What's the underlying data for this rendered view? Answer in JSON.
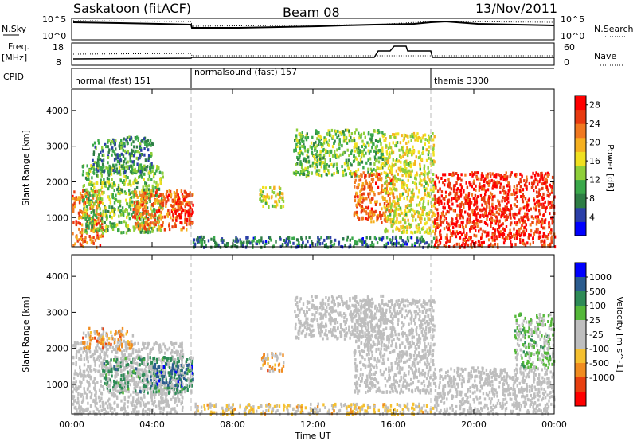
{
  "header": {
    "station": "Saskatoon (fitACF)",
    "beam": "Beam 08",
    "date": "13/Nov/2011"
  },
  "noise_panel": {
    "left_label": "N.Sky",
    "left_ticks": [
      "10^5",
      "10^0"
    ],
    "right_ticks": [
      "10^5",
      "10^0"
    ],
    "right_label": "N.Search"
  },
  "freq_panel": {
    "left_label_1": "Freq.",
    "left_label_2": "[MHz]",
    "left_ticks": [
      "18",
      "8"
    ],
    "right_ticks": [
      "60",
      "0"
    ],
    "right_label": "Nave"
  },
  "cpid": {
    "label": "CPID",
    "modes": [
      {
        "name": "normal (fast) 151",
        "start_hour": 0
      },
      {
        "name": "normalsound (fast) 157",
        "start_hour": 6
      },
      {
        "name": "themis 3300",
        "start_hour": 18
      }
    ]
  },
  "colors": {
    "power_scale": [
      "#0000ff",
      "#2b3fa8",
      "#2e7d45",
      "#3aa84a",
      "#8fcf3a",
      "#f0e020",
      "#f5b020",
      "#f07820",
      "#e83a10",
      "#ff0000"
    ],
    "velocity_scale": [
      "#0000ff",
      "#2b5c8f",
      "#2e8b57",
      "#55b83a",
      "#bebebe",
      "#bebebe",
      "#f5c030",
      "#f08c20",
      "#e84010",
      "#ff0000"
    ],
    "ground_scatter": "#bebebe"
  },
  "chart_data": [
    {
      "type": "heatmap",
      "name": "power",
      "xlabel": "",
      "ylabel": "Slant Range [km]",
      "xlim": [
        0,
        24
      ],
      "ylim": [
        180,
        4600
      ],
      "yticks": [
        1000,
        2000,
        3000,
        4000
      ],
      "colorbar_label": "Power [dB]",
      "colorbar_ticks": [
        4,
        8,
        12,
        16,
        20,
        24,
        28
      ],
      "colorbar_range": [
        0,
        30
      ],
      "mode_boundaries_hours": [
        6,
        18
      ],
      "scatter_regions": [
        {
          "t0": 0.0,
          "t1": 1.5,
          "r0": 200,
          "r1": 1800,
          "power": 24
        },
        {
          "t0": 0.5,
          "t1": 4.5,
          "r0": 600,
          "r1": 2500,
          "power": 12
        },
        {
          "t0": 1.0,
          "t1": 4.0,
          "r0": 2300,
          "r1": 3300,
          "power": 8
        },
        {
          "t0": 3.0,
          "t1": 6.0,
          "r0": 700,
          "r1": 1800,
          "power": 24
        },
        {
          "t0": 5.0,
          "t1": 6.0,
          "r0": 800,
          "r1": 1700,
          "power": 28
        },
        {
          "t0": 6.0,
          "t1": 18.0,
          "r0": 200,
          "r1": 500,
          "power": 6
        },
        {
          "t0": 9.3,
          "t1": 10.5,
          "r0": 1300,
          "r1": 1900,
          "power": 16
        },
        {
          "t0": 11.0,
          "t1": 15.5,
          "r0": 2200,
          "r1": 3500,
          "power": 12
        },
        {
          "t0": 14.0,
          "t1": 16.0,
          "r0": 900,
          "r1": 2300,
          "power": 24
        },
        {
          "t0": 15.5,
          "t1": 18.0,
          "r0": 600,
          "r1": 3400,
          "power": 16
        },
        {
          "t0": 18.0,
          "t1": 24.0,
          "r0": 200,
          "r1": 2300,
          "power": 28
        }
      ]
    },
    {
      "type": "heatmap",
      "name": "velocity",
      "xlabel": "Time UT",
      "ylabel": "Slant Range [km]",
      "xlim": [
        0,
        24
      ],
      "ylim": [
        180,
        4600
      ],
      "yticks": [
        1000,
        2000,
        3000,
        4000
      ],
      "xticks": [
        "00:00",
        "04:00",
        "08:00",
        "12:00",
        "16:00",
        "20:00",
        "00:00"
      ],
      "xtick_hours": [
        0,
        4,
        8,
        12,
        16,
        20,
        24
      ],
      "colorbar_label": "Velocity [m s^-1]",
      "colorbar_ticks": [
        "1000",
        "500",
        "100",
        "25",
        "-25",
        "-100",
        "-500",
        "-1000"
      ],
      "mode_boundaries_hours": [
        6,
        18
      ],
      "scatter_regions": [
        {
          "t0": 0.0,
          "t1": 5.5,
          "r0": 200,
          "r1": 2200,
          "velocity": 0
        },
        {
          "t0": 1.5,
          "t1": 6.0,
          "r0": 800,
          "r1": 1800,
          "velocity": 200
        },
        {
          "t0": 0.5,
          "t1": 3.0,
          "r0": 2000,
          "r1": 2600,
          "velocity": -150
        },
        {
          "t0": 4.0,
          "t1": 6.0,
          "r0": 1000,
          "r1": 1600,
          "velocity": 400
        },
        {
          "t0": 6.0,
          "t1": 18.0,
          "r0": 200,
          "r1": 500,
          "velocity": -80
        },
        {
          "t0": 9.3,
          "t1": 10.5,
          "r0": 1400,
          "r1": 1900,
          "velocity": -300
        },
        {
          "t0": 11.0,
          "t1": 15.5,
          "r0": 2300,
          "r1": 3500,
          "velocity": 0
        },
        {
          "t0": 14.0,
          "t1": 18.0,
          "r0": 800,
          "r1": 3400,
          "velocity": 0
        },
        {
          "t0": 18.0,
          "t1": 24.0,
          "r0": 200,
          "r1": 1500,
          "velocity": 0
        },
        {
          "t0": 22.0,
          "t1": 24.0,
          "r0": 1500,
          "r1": 3000,
          "velocity": 100
        }
      ]
    }
  ]
}
